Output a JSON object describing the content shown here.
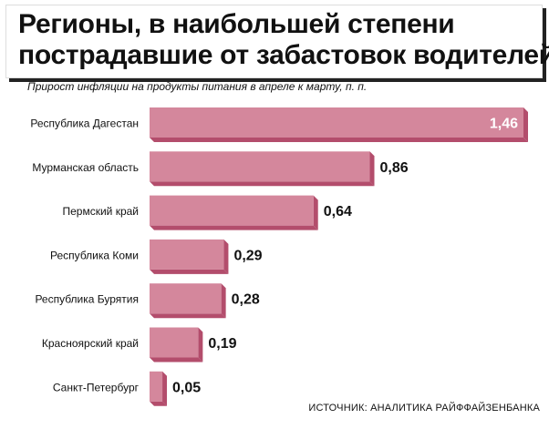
{
  "title_lines": [
    "Регионы, в наибольшей степени",
    "пострадавшие от забастовок водителей"
  ],
  "subtitle": "Прирост инфляции на продукты питания в апреле к марту, п. п.",
  "source": "ИСТОЧНИК: АНАЛИТИКА РАЙФФАЙЗЕНБАНКА",
  "colors": {
    "bar_face": "#d4879c",
    "bar_dark": "#b34d6c",
    "value_label_light": "#ffffff",
    "value_label_dark": "#111111"
  },
  "chart_data": {
    "type": "bar",
    "orientation": "horizontal",
    "title": "Регионы, в наибольшей степени пострадавшие от забастовок водителей",
    "subtitle": "Прирост инфляции на продукты питания в апреле к марту, п. п.",
    "categories": [
      "Республика Дагестан",
      "Мурманская область",
      "Пермский край",
      "Республика Коми",
      "Республика Бурятия",
      "Красноярский край",
      "Санкт-Петербург"
    ],
    "values": [
      1.46,
      0.86,
      0.64,
      0.29,
      0.28,
      0.19,
      0.05
    ],
    "value_labels": [
      "1,46",
      "0,86",
      "0,64",
      "0,29",
      "0,28",
      "0,19",
      "0,05"
    ],
    "xlim": [
      0,
      1.46
    ],
    "grid": false,
    "legend": "none"
  }
}
